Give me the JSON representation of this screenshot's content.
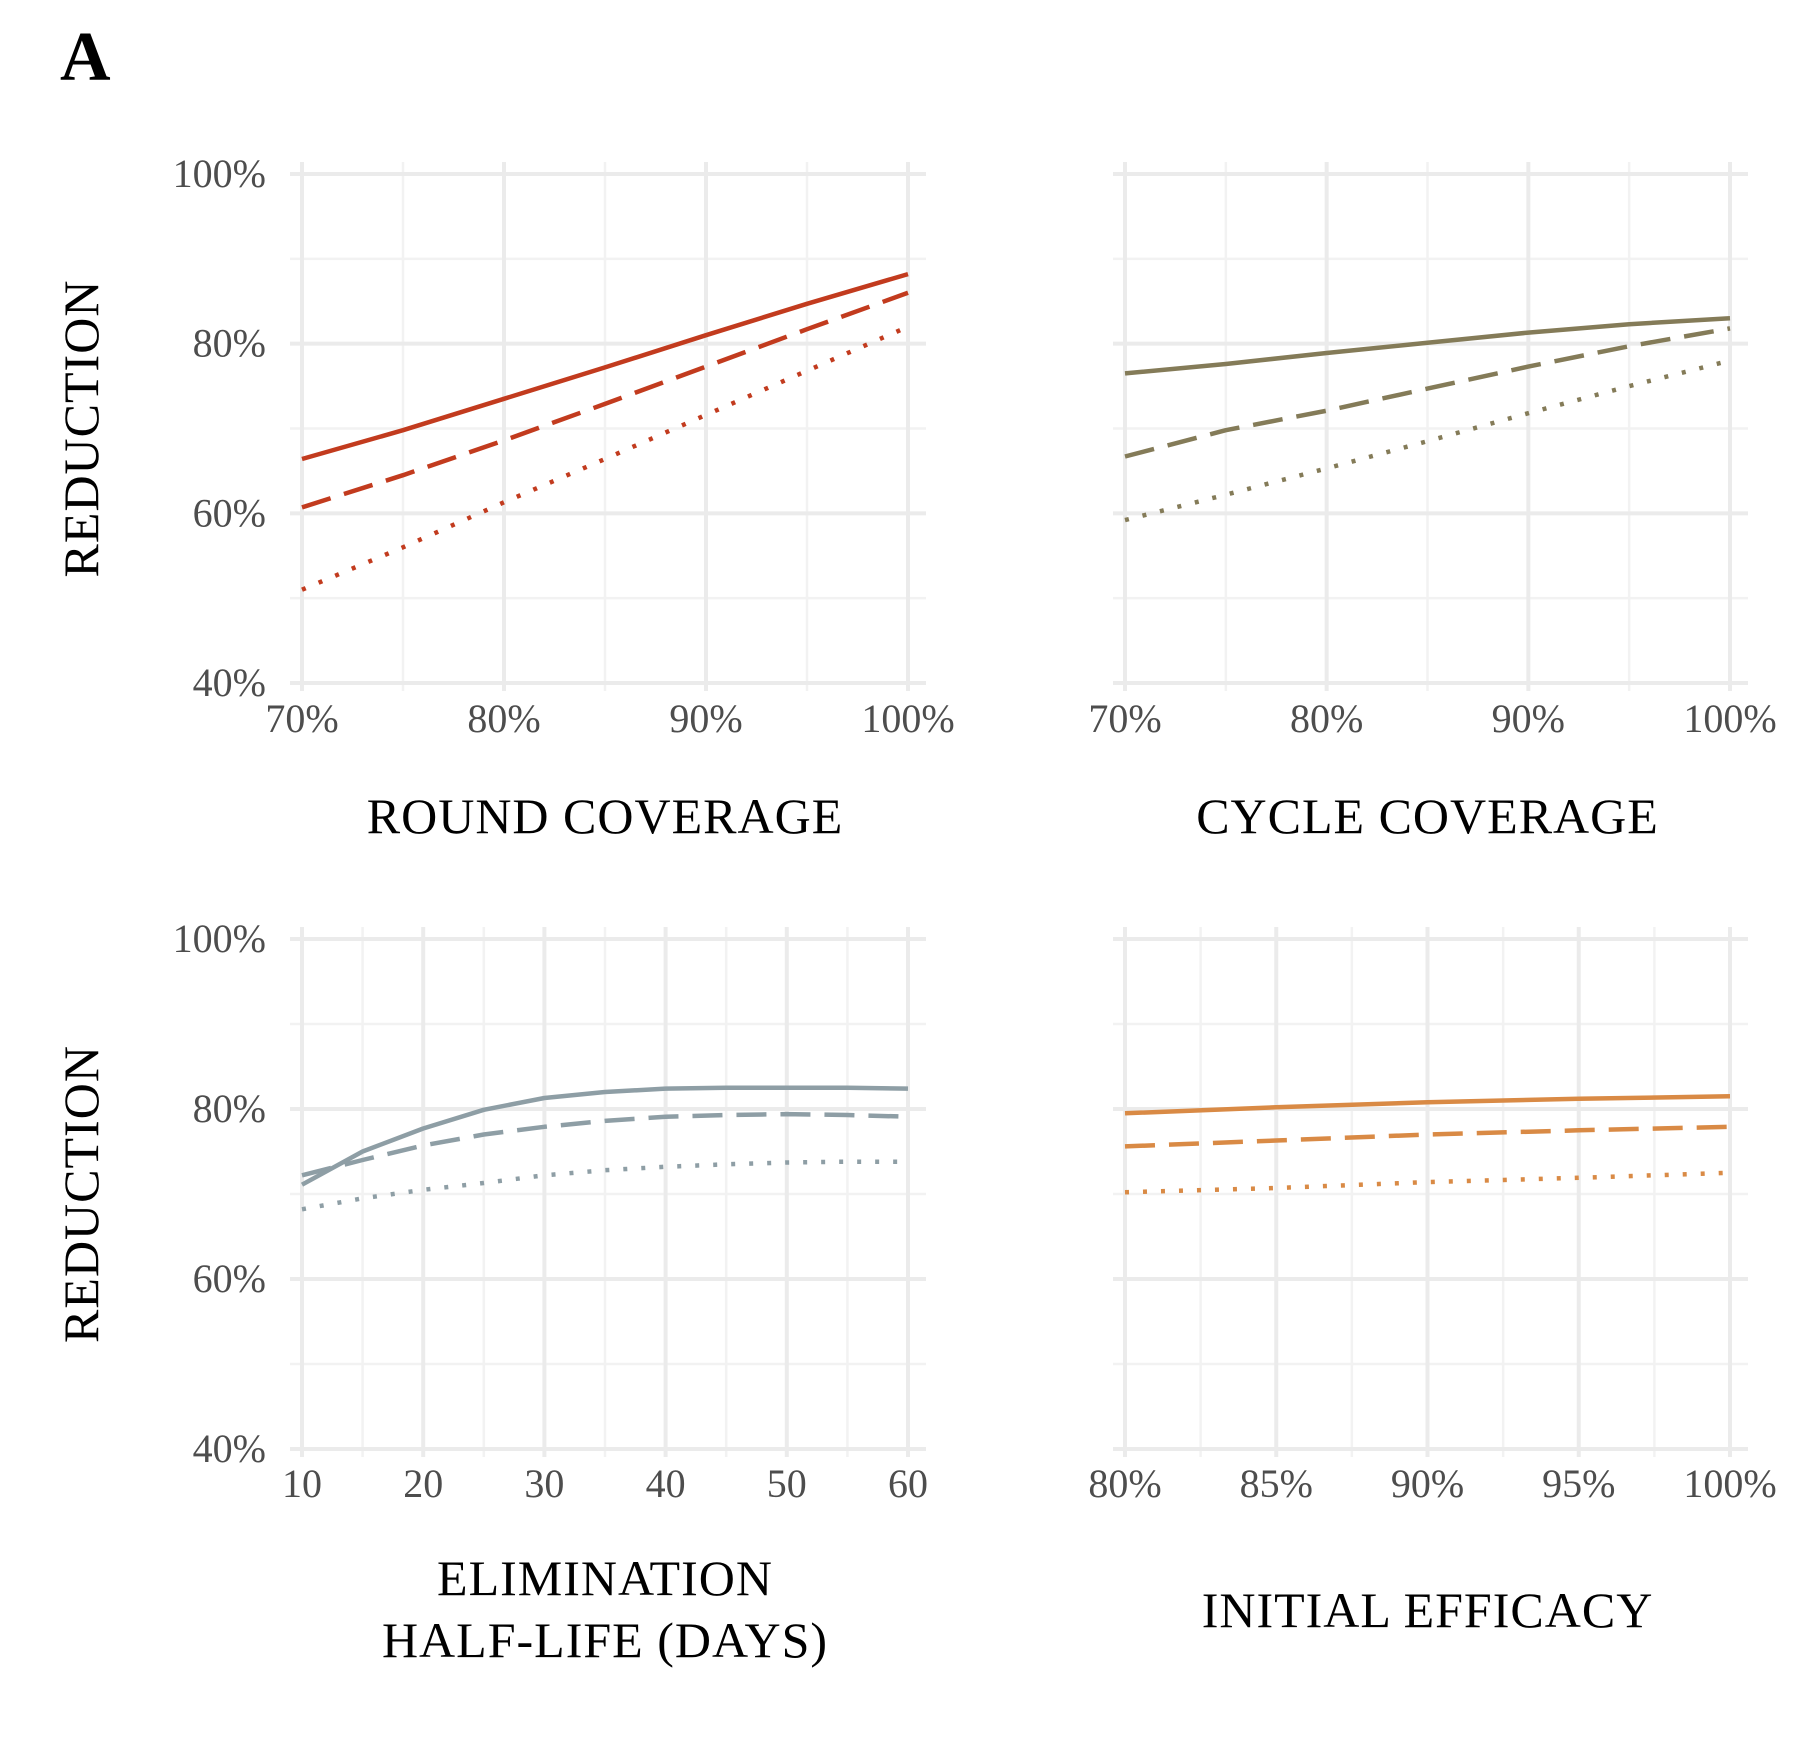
{
  "panel_letter": "A",
  "chart_data": [
    {
      "type": "line",
      "panel": "top-left",
      "xlabel": [
        "ROUND  COVERAGE"
      ],
      "ylabel": "REDUCTION",
      "x_ticks": [
        "70%",
        "80%",
        "90%",
        "100%"
      ],
      "y_ticks": [
        "40%",
        "60%",
        "80%",
        "100%"
      ],
      "xlim": [
        0.7,
        1.0
      ],
      "ylim": [
        0.4,
        1.0
      ],
      "grid": true,
      "color": "#c23b1e",
      "series": [
        {
          "linestyle": "solid",
          "x": [
            0.7,
            0.75,
            0.8,
            0.85,
            0.9,
            0.95,
            1.0
          ],
          "values": [
            0.664,
            0.698,
            0.735,
            0.772,
            0.81,
            0.847,
            0.882
          ]
        },
        {
          "linestyle": "dashed",
          "x": [
            0.7,
            0.75,
            0.8,
            0.85,
            0.9,
            0.95,
            1.0
          ],
          "values": [
            0.607,
            0.645,
            0.686,
            0.729,
            0.773,
            0.817,
            0.86
          ]
        },
        {
          "linestyle": "dotted",
          "x": [
            0.7,
            0.75,
            0.8,
            0.85,
            0.9,
            0.95,
            1.0
          ],
          "values": [
            0.51,
            0.56,
            0.613,
            0.664,
            0.716,
            0.768,
            0.82
          ]
        }
      ]
    },
    {
      "type": "line",
      "panel": "top-right",
      "xlabel": [
        "CYCLE  COVERAGE"
      ],
      "ylabel": "",
      "x_ticks": [
        "70%",
        "80%",
        "90%",
        "100%"
      ],
      "y_ticks": [],
      "xlim": [
        0.7,
        1.0
      ],
      "ylim": [
        0.4,
        1.0
      ],
      "grid": true,
      "color": "#847b58",
      "series": [
        {
          "linestyle": "solid",
          "x": [
            0.7,
            0.75,
            0.8,
            0.85,
            0.9,
            0.95,
            1.0
          ],
          "values": [
            0.765,
            0.776,
            0.789,
            0.801,
            0.813,
            0.823,
            0.83
          ]
        },
        {
          "linestyle": "dashed",
          "x": [
            0.7,
            0.75,
            0.8,
            0.85,
            0.9,
            0.95,
            1.0
          ],
          "values": [
            0.667,
            0.698,
            0.721,
            0.747,
            0.773,
            0.797,
            0.818
          ]
        },
        {
          "linestyle": "dotted",
          "x": [
            0.7,
            0.75,
            0.8,
            0.85,
            0.9,
            0.95,
            1.0
          ],
          "values": [
            0.592,
            0.622,
            0.653,
            0.685,
            0.718,
            0.75,
            0.78
          ]
        }
      ]
    },
    {
      "type": "line",
      "panel": "bottom-left",
      "xlabel": [
        "ELIMINATION",
        "HALF-LIFE  (DAYS)"
      ],
      "ylabel": "REDUCTION",
      "x_ticks": [
        "10",
        "20",
        "30",
        "40",
        "50",
        "60"
      ],
      "y_ticks": [
        "40%",
        "60%",
        "80%",
        "100%"
      ],
      "xlim": [
        10,
        60
      ],
      "ylim": [
        0.4,
        1.0
      ],
      "grid": true,
      "color": "#8e9ea5",
      "series": [
        {
          "linestyle": "solid",
          "x": [
            10,
            15,
            20,
            25,
            30,
            35,
            40,
            45,
            50,
            55,
            60
          ],
          "values": [
            0.711,
            0.75,
            0.777,
            0.799,
            0.813,
            0.82,
            0.824,
            0.825,
            0.825,
            0.825,
            0.824
          ]
        },
        {
          "linestyle": "dashed",
          "x": [
            10,
            15,
            20,
            25,
            30,
            35,
            40,
            45,
            50,
            55,
            60
          ],
          "values": [
            0.722,
            0.74,
            0.757,
            0.77,
            0.779,
            0.786,
            0.791,
            0.793,
            0.794,
            0.793,
            0.791
          ]
        },
        {
          "linestyle": "dotted",
          "x": [
            10,
            15,
            20,
            25,
            30,
            35,
            40,
            45,
            50,
            55,
            60
          ],
          "values": [
            0.682,
            0.695,
            0.705,
            0.713,
            0.722,
            0.728,
            0.732,
            0.735,
            0.737,
            0.738,
            0.738
          ]
        }
      ]
    },
    {
      "type": "line",
      "panel": "bottom-right",
      "xlabel": [
        "INITIAL  EFFICACY"
      ],
      "ylabel": "",
      "x_ticks": [
        "80%",
        "85%",
        "90%",
        "95%",
        "100%"
      ],
      "y_ticks": [],
      "xlim": [
        0.8,
        1.0
      ],
      "ylim": [
        0.4,
        1.0
      ],
      "grid": true,
      "color": "#d98a45",
      "series": [
        {
          "linestyle": "solid",
          "x": [
            0.8,
            0.85,
            0.9,
            0.95,
            1.0
          ],
          "values": [
            0.795,
            0.802,
            0.808,
            0.812,
            0.815
          ]
        },
        {
          "linestyle": "dashed",
          "x": [
            0.8,
            0.85,
            0.9,
            0.95,
            1.0
          ],
          "values": [
            0.756,
            0.763,
            0.77,
            0.775,
            0.779
          ]
        },
        {
          "linestyle": "dotted",
          "x": [
            0.8,
            0.85,
            0.9,
            0.95,
            1.0
          ],
          "values": [
            0.702,
            0.707,
            0.714,
            0.719,
            0.725
          ]
        }
      ]
    }
  ]
}
